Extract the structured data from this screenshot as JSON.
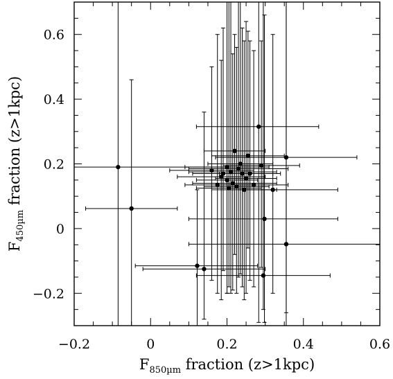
{
  "chart_data": {
    "type": "scatter",
    "title": "",
    "xlabel": {
      "main": "F",
      "sub": "850µm",
      "rest": " fraction (z>1kpc)"
    },
    "ylabel": {
      "main": "F",
      "sub": "450µm",
      "rest": " fraction (z>1kpc)"
    },
    "xlim": [
      -0.2,
      0.6
    ],
    "ylim": [
      -0.3,
      0.7
    ],
    "xticks": [
      -0.2,
      0,
      0.2,
      0.4,
      0.6
    ],
    "xtick_labels": [
      "−0.2",
      "0",
      "0.2",
      "0.4",
      "0.6"
    ],
    "yticks": [
      -0.2,
      0,
      0.2,
      0.4,
      0.6
    ],
    "ytick_labels": [
      "−0.2",
      "0",
      "0.2",
      "0.4",
      "0.6"
    ],
    "x_minor_step": 0.05,
    "y_minor_step": 0.05,
    "grid": false,
    "legend": "none",
    "marker_color": "#000000",
    "points": [
      {
        "x": -0.085,
        "y": 0.19,
        "xlo": -0.37,
        "xhi": 0.21,
        "ylo": -0.3,
        "yhi": 0.7
      },
      {
        "x": -0.05,
        "y": 0.062,
        "xlo": -0.17,
        "xhi": 0.07,
        "ylo": -0.3,
        "yhi": 0.46
      },
      {
        "x": 0.122,
        "y": -0.115,
        "xlo": -0.04,
        "xhi": 0.28,
        "ylo": -0.3,
        "yhi": 0.12
      },
      {
        "x": 0.14,
        "y": -0.125,
        "xlo": -0.02,
        "xhi": 0.3,
        "ylo": -0.28,
        "yhi": 0.36
      },
      {
        "x": 0.175,
        "y": 0.135,
        "xlo": 0.09,
        "xhi": 0.26,
        "ylo": -0.2,
        "yhi": 0.6
      },
      {
        "x": 0.19,
        "y": 0.17,
        "xlo": 0.11,
        "xhi": 0.27,
        "ylo": -0.13,
        "yhi": 0.62
      },
      {
        "x": 0.205,
        "y": 0.125,
        "xlo": 0.12,
        "xhi": 0.29,
        "ylo": -0.18,
        "yhi": 0.7
      },
      {
        "x": 0.2,
        "y": 0.15,
        "xlo": 0.12,
        "xhi": 0.28,
        "ylo": -0.2,
        "yhi": 0.7
      },
      {
        "x": 0.22,
        "y": 0.24,
        "xlo": 0.14,
        "xhi": 0.3,
        "ylo": -0.08,
        "yhi": 0.6
      },
      {
        "x": 0.225,
        "y": 0.13,
        "xlo": 0.14,
        "xhi": 0.31,
        "ylo": -0.2,
        "yhi": 0.56
      },
      {
        "x": 0.235,
        "y": 0.2,
        "xlo": 0.15,
        "xhi": 0.32,
        "ylo": -0.14,
        "yhi": 0.7
      },
      {
        "x": 0.24,
        "y": 0.17,
        "xlo": 0.16,
        "xhi": 0.32,
        "ylo": -0.18,
        "yhi": 0.62
      },
      {
        "x": 0.245,
        "y": 0.12,
        "xlo": 0.16,
        "xhi": 0.33,
        "ylo": -0.22,
        "yhi": 0.58
      },
      {
        "x": 0.25,
        "y": 0.155,
        "xlo": 0.17,
        "xhi": 0.33,
        "ylo": -0.2,
        "yhi": 0.64
      },
      {
        "x": 0.255,
        "y": 0.225,
        "xlo": 0.16,
        "xhi": 0.35,
        "ylo": -0.06,
        "yhi": 0.61
      },
      {
        "x": 0.26,
        "y": 0.17,
        "xlo": 0.18,
        "xhi": 0.34,
        "ylo": -0.16,
        "yhi": 0.58
      },
      {
        "x": 0.27,
        "y": 0.135,
        "xlo": 0.19,
        "xhi": 0.36,
        "ylo": -0.18,
        "yhi": 0.55
      },
      {
        "x": 0.283,
        "y": 0.315,
        "xlo": 0.12,
        "xhi": 0.44,
        "ylo": -0.29,
        "yhi": 0.7
      },
      {
        "x": 0.29,
        "y": 0.195,
        "xlo": 0.19,
        "xhi": 0.39,
        "ylo": -0.12,
        "yhi": 0.58
      },
      {
        "x": 0.295,
        "y": -0.145,
        "xlo": 0.12,
        "xhi": 0.47,
        "ylo": -0.25,
        "yhi": 0.7
      },
      {
        "x": 0.298,
        "y": 0.03,
        "xlo": 0.1,
        "xhi": 0.49,
        "ylo": -0.29,
        "yhi": 0.66
      },
      {
        "x": 0.32,
        "y": 0.12,
        "xlo": 0.23,
        "xhi": 0.49,
        "ylo": -0.2,
        "yhi": 0.6
      },
      {
        "x": 0.355,
        "y": 0.22,
        "xlo": 0.17,
        "xhi": 0.54,
        "ylo": -0.26,
        "yhi": 0.7
      },
      {
        "x": 0.355,
        "y": -0.048,
        "xlo": 0.1,
        "xhi": 0.62,
        "ylo": -0.3,
        "yhi": 0.7
      },
      {
        "x": 0.2,
        "y": 0.19,
        "xlo": 0.09,
        "xhi": 0.31,
        "ylo": -0.2,
        "yhi": 0.7
      },
      {
        "x": 0.185,
        "y": 0.16,
        "xlo": 0.07,
        "xhi": 0.3,
        "ylo": -0.22,
        "yhi": 0.52
      },
      {
        "x": 0.215,
        "y": 0.14,
        "xlo": 0.11,
        "xhi": 0.33,
        "ylo": -0.19,
        "yhi": 0.54
      },
      {
        "x": 0.16,
        "y": 0.18,
        "xlo": 0.05,
        "xhi": 0.27,
        "ylo": -0.16,
        "yhi": 0.5
      },
      {
        "x": 0.23,
        "y": 0.185,
        "xlo": 0.1,
        "xhi": 0.36,
        "ylo": -0.15,
        "yhi": 0.7
      },
      {
        "x": 0.21,
        "y": 0.175,
        "xlo": 0.1,
        "xhi": 0.33,
        "ylo": -0.2,
        "yhi": 0.7
      }
    ]
  }
}
